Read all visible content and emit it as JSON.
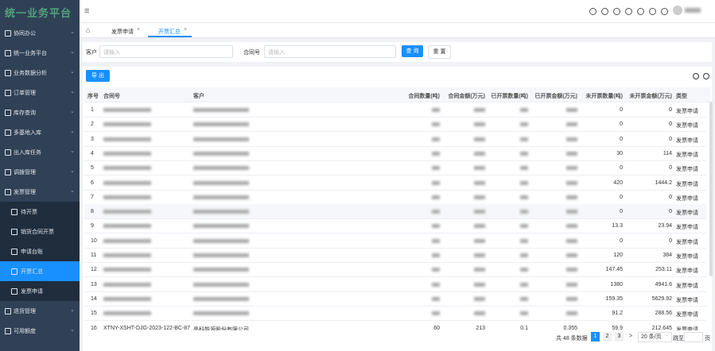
{
  "sidebar": {
    "title": "统一业务平台",
    "menu": [
      {
        "label": "协同办公"
      },
      {
        "label": "统一业务平台"
      },
      {
        "label": "业务数据分析"
      },
      {
        "label": "订单管理"
      },
      {
        "label": "库存查询"
      },
      {
        "label": "多基地入库"
      },
      {
        "label": "出入库任务"
      },
      {
        "label": "调拨管理"
      },
      {
        "label": "发票管理"
      },
      {
        "label": "待开票",
        "sub": true
      },
      {
        "label": "销货合同开票",
        "sub": true
      },
      {
        "label": "申请台账",
        "sub": true
      },
      {
        "label": "开票汇总",
        "sub": true,
        "active": true
      },
      {
        "label": "发票申请",
        "sub": true
      },
      {
        "label": "退货管理"
      },
      {
        "label": "可用额度"
      }
    ]
  },
  "tabs": [
    "发票申请",
    "开票汇总"
  ],
  "search": {
    "fields": [
      {
        "label": "客户",
        "placeholder": "请输入"
      },
      {
        "label": "合同号",
        "placeholder": "请输入"
      }
    ],
    "query": "查 询",
    "reset": "重 置"
  },
  "toolbar": {
    "export": "导 出"
  },
  "table": {
    "headers": [
      "序号",
      "合同号",
      "客户",
      "合同数量(吨)",
      "合同金额(万元)",
      "已开票数量(吨)",
      "已开票金额(万元)",
      "未开票数量(吨)",
      "未开票金额(万元)",
      "类型"
    ],
    "rows": [
      {
        "no": 1,
        "unbilled_qty": 0,
        "unbilled_amount": 0,
        "type": "发票申请"
      },
      {
        "no": 2,
        "unbilled_qty": 0,
        "unbilled_amount": 0,
        "type": "发票申请"
      },
      {
        "no": 3,
        "unbilled_qty": 0,
        "unbilled_amount": 0,
        "type": "发票申请"
      },
      {
        "no": 4,
        "unbilled_qty": 30,
        "unbilled_amount": 114,
        "type": "发票申请"
      },
      {
        "no": 5,
        "unbilled_qty": 0,
        "unbilled_amount": 0,
        "type": "发票申请"
      },
      {
        "no": 6,
        "unbilled_qty": 420,
        "unbilled_amount": 1444.2,
        "type": "发票申请"
      },
      {
        "no": 7,
        "unbilled_qty": 0,
        "unbilled_amount": 0,
        "type": "发票申请"
      },
      {
        "no": 8,
        "unbilled_qty": 0,
        "unbilled_amount": 0,
        "type": "发票申请"
      },
      {
        "no": 9,
        "unbilled_qty": 13.3,
        "unbilled_amount": 23.94,
        "type": "发票申请"
      },
      {
        "no": 10,
        "unbilled_qty": 0,
        "unbilled_amount": 0,
        "type": "发票申请"
      },
      {
        "no": 11,
        "unbilled_qty": 120,
        "unbilled_amount": 384,
        "type": "发票申请"
      },
      {
        "no": 12,
        "unbilled_qty": 147.45,
        "unbilled_amount": 253.11,
        "type": "发票申请"
      },
      {
        "no": 13,
        "unbilled_qty": 1380,
        "unbilled_amount": 4941.6,
        "type": "发票申请"
      },
      {
        "no": 14,
        "unbilled_qty": 159.35,
        "unbilled_amount": 5629.92,
        "type": "发票申请"
      },
      {
        "no": 15,
        "unbilled_qty": 91.2,
        "unbilled_amount": 288.56,
        "type": "发票申请"
      },
      {
        "no": 16,
        "contract": "XTNY-XSHT-DJG-2023-122-BC-87",
        "customer": "晶科能源股份有限公司",
        "contract_qty": 60,
        "contract_amount": 213,
        "billed_qty": 0.1,
        "billed_amount": 0.355,
        "unbilled_qty": 59.9,
        "unbilled_amount": 212.645,
        "type": "发票申请"
      }
    ]
  },
  "pagination": {
    "total": "共 48 条数据",
    "pages": [
      1,
      2,
      3
    ],
    "next": ">",
    "page_size": "20 条/页",
    "jump": "跳至",
    "page_unit": "页"
  }
}
